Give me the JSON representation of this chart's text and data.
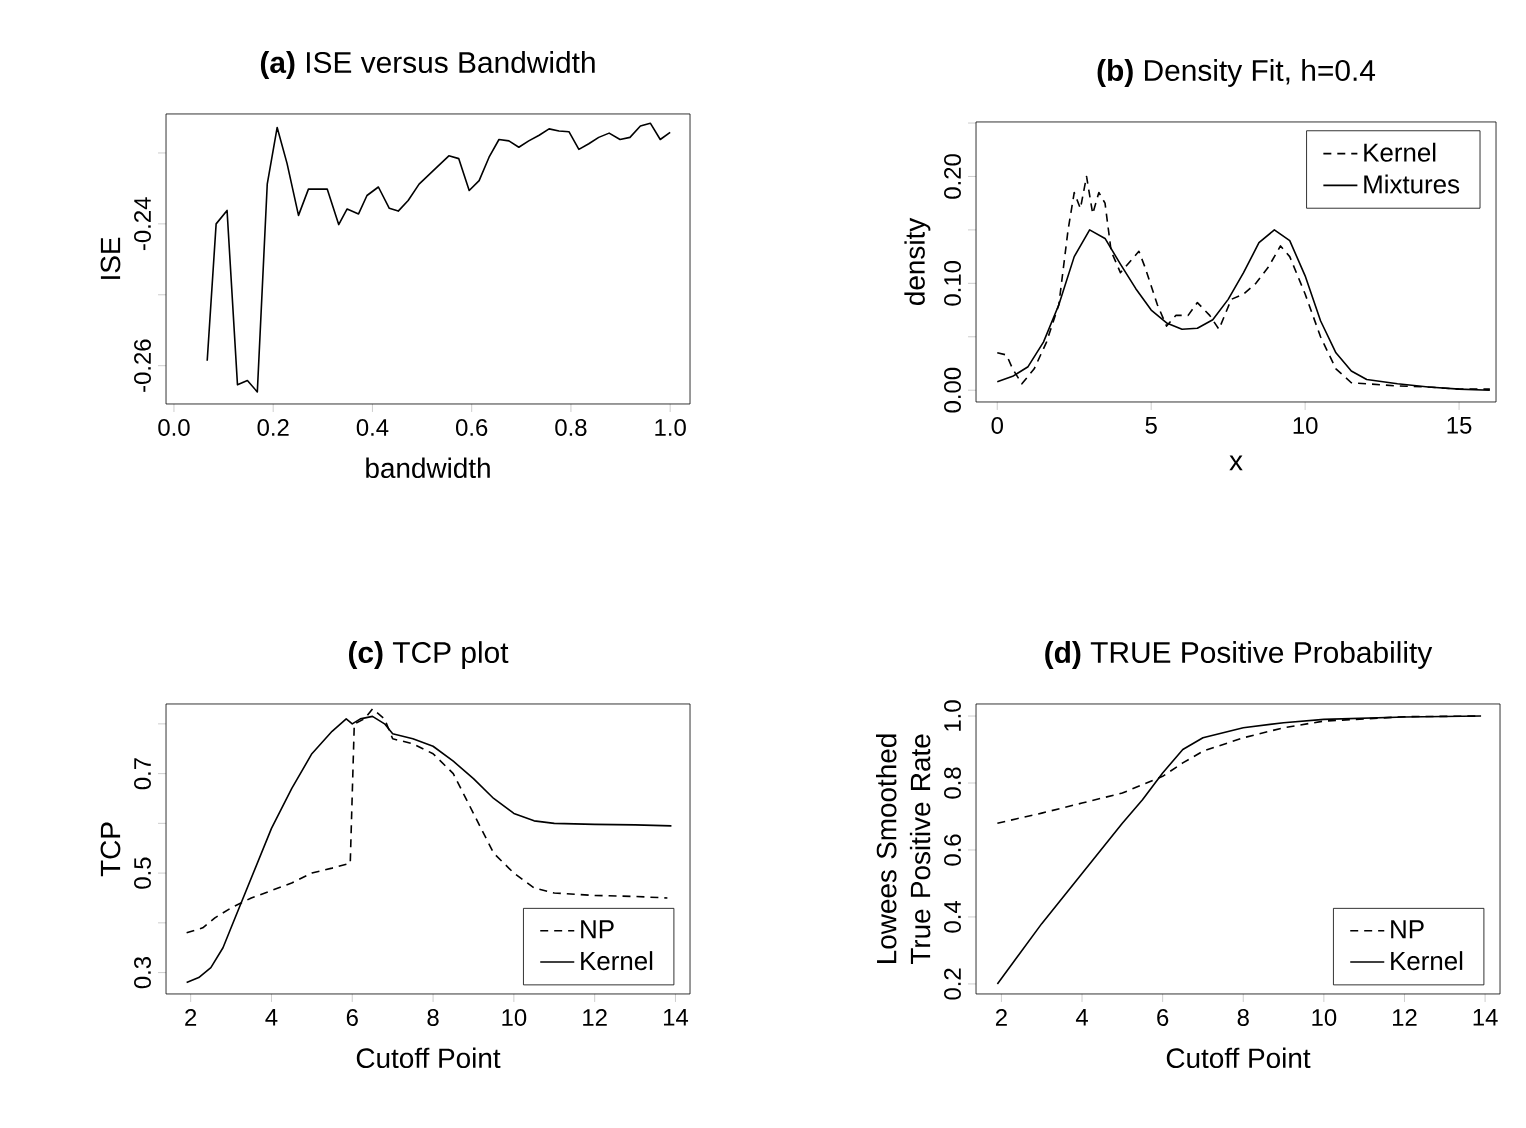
{
  "chart_data": [
    {
      "type": "line",
      "title": "**(a)** ISE versus Bandwidth",
      "xlabel": "bandwidth",
      "ylabel": "ISE",
      "xlim": [
        -0.016,
        1.04
      ],
      "ylim": [
        -0.2654,
        -0.2245
      ],
      "xticks": [
        {
          "value": 0,
          "label": "0.0"
        },
        0.2,
        0.4,
        0.6,
        0.8,
        {
          "value": 1,
          "label": "1.0"
        }
      ],
      "yticks": [
        -0.26,
        {
          "value": -0.25,
          "label": null
        },
        -0.24,
        {
          "value": -0.23,
          "label": null
        }
      ],
      "legend": false,
      "series": [
        {
          "color": "#000000",
          "line_style": "solid",
          "x": [
            0.067,
            0.085,
            0.107,
            0.128,
            0.148,
            0.168,
            0.188,
            0.208,
            0.228,
            0.251,
            0.271,
            0.309,
            0.332,
            0.349,
            0.372,
            0.389,
            0.412,
            0.434,
            0.452,
            0.472,
            0.494,
            0.53,
            0.554,
            0.574,
            0.595,
            0.615,
            0.635,
            0.655,
            0.675,
            0.695,
            0.715,
            0.736,
            0.756,
            0.776,
            0.796,
            0.816,
            0.836,
            0.856,
            0.877,
            0.899,
            0.919,
            0.94,
            0.96,
            0.98,
            1.0
          ],
          "values": [
            -0.2593,
            -0.24,
            -0.2381,
            -0.2627,
            -0.2621,
            -0.2637,
            -0.2344,
            -0.2264,
            -0.2315,
            -0.2388,
            -0.2351,
            -0.2351,
            -0.2401,
            -0.2379,
            -0.2386,
            -0.236,
            -0.2348,
            -0.2378,
            -0.2382,
            -0.2367,
            -0.2344,
            -0.232,
            -0.2304,
            -0.2308,
            -0.2353,
            -0.2339,
            -0.2306,
            -0.2281,
            -0.2283,
            -0.2292,
            -0.2283,
            -0.2275,
            -0.2266,
            -0.2269,
            -0.227,
            -0.2295,
            -0.2287,
            -0.2278,
            -0.2272,
            -0.2281,
            -0.2278,
            -0.2262,
            -0.2258,
            -0.2281,
            -0.2271
          ]
        }
      ]
    },
    {
      "type": "line",
      "title": "**(b)** Density Fit, h=0.4",
      "xlabel": "x",
      "ylabel": "density",
      "xlim": [
        -0.69,
        16.2
      ],
      "ylim": [
        -0.011,
        0.251
      ],
      "xticks": [
        0,
        5,
        10,
        15
      ],
      "yticks": [
        {
          "value": 0,
          "label": "0.00"
        },
        {
          "value": 0.05,
          "label": null
        },
        {
          "value": 0.1,
          "label": "0.10"
        },
        {
          "value": 0.15,
          "label": null
        },
        {
          "value": 0.2,
          "label": "0.20"
        },
        {
          "value": 0.25,
          "label": null
        }
      ],
      "legend": "top right",
      "series": [
        {
          "name": "Kernel",
          "color": "#000000",
          "line_style": "dashed",
          "x": [
            0,
            0.3,
            0.5,
            0.8,
            1.2,
            1.6,
            2,
            2.3,
            2.5,
            2.7,
            2.9,
            3.1,
            3.3,
            3.5,
            3.7,
            4,
            4.3,
            4.6,
            4.8,
            5.2,
            5.5,
            5.8,
            6.2,
            6.5,
            6.9,
            7.2,
            7.6,
            8.0,
            8.4,
            8.8,
            9.2,
            9.5,
            10,
            10.5,
            11,
            11.5,
            12,
            13,
            14,
            15,
            16
          ],
          "values": [
            0.035,
            0.033,
            0.02,
            0.006,
            0.02,
            0.045,
            0.08,
            0.15,
            0.185,
            0.17,
            0.2,
            0.165,
            0.185,
            0.175,
            0.13,
            0.11,
            0.12,
            0.13,
            0.115,
            0.08,
            0.06,
            0.07,
            0.07,
            0.082,
            0.07,
            0.057,
            0.085,
            0.09,
            0.1,
            0.115,
            0.135,
            0.125,
            0.09,
            0.05,
            0.02,
            0.007,
            0.006,
            0.004,
            0.003,
            0.001,
            0.001
          ]
        },
        {
          "name": "Mixtures",
          "color": "#000000",
          "line_style": "solid",
          "x": [
            0,
            0.5,
            1,
            1.5,
            2,
            2.5,
            3,
            3.5,
            4,
            4.5,
            5,
            5.5,
            6,
            6.5,
            7,
            7.5,
            8,
            8.5,
            9,
            9.5,
            10,
            10.5,
            11,
            11.5,
            12,
            13,
            14,
            15,
            16
          ],
          "values": [
            0.008,
            0.013,
            0.022,
            0.045,
            0.08,
            0.125,
            0.15,
            0.142,
            0.118,
            0.095,
            0.075,
            0.063,
            0.057,
            0.058,
            0.066,
            0.085,
            0.11,
            0.138,
            0.15,
            0.14,
            0.107,
            0.065,
            0.035,
            0.018,
            0.01,
            0.006,
            0.003,
            0.001,
            0.0
          ]
        }
      ]
    },
    {
      "type": "line",
      "title": "**(c)** TCP plot",
      "xlabel": "Cutoff Point",
      "ylabel": "TCP",
      "xlim": [
        1.39,
        14.36
      ],
      "ylim": [
        0.257,
        0.84
      ],
      "xticks": [
        2,
        4,
        6,
        8,
        10,
        12,
        14
      ],
      "yticks": [
        0.3,
        {
          "value": 0.4,
          "label": null
        },
        0.5,
        {
          "value": 0.6,
          "label": null
        },
        0.7,
        {
          "value": 0.8,
          "label": null
        }
      ],
      "legend": "bottom right",
      "series": [
        {
          "name": "NP",
          "color": "#000000",
          "line_style": "dashed",
          "x": [
            1.9,
            2.3,
            2.6,
            3,
            3.5,
            4,
            4.5,
            5,
            5.5,
            5.95,
            6.05,
            6.3,
            6.5,
            6.8,
            7,
            7.5,
            8,
            8.5,
            9,
            9.5,
            10,
            10.5,
            11,
            12,
            13,
            13.8
          ],
          "values": [
            0.38,
            0.39,
            0.41,
            0.43,
            0.45,
            0.465,
            0.48,
            0.5,
            0.51,
            0.52,
            0.8,
            0.81,
            0.83,
            0.81,
            0.77,
            0.76,
            0.74,
            0.7,
            0.62,
            0.54,
            0.5,
            0.47,
            0.46,
            0.455,
            0.453,
            0.45
          ]
        },
        {
          "name": "Kernel",
          "color": "#000000",
          "line_style": "solid",
          "x": [
            1.9,
            2.2,
            2.5,
            2.8,
            3,
            3.5,
            4,
            4.5,
            5,
            5.5,
            5.85,
            6,
            6.2,
            6.5,
            6.8,
            7,
            7.5,
            8,
            8.5,
            9,
            9.5,
            10,
            10.5,
            11,
            12,
            13,
            13.9
          ],
          "values": [
            0.28,
            0.29,
            0.31,
            0.35,
            0.39,
            0.49,
            0.59,
            0.67,
            0.74,
            0.785,
            0.81,
            0.8,
            0.81,
            0.815,
            0.8,
            0.78,
            0.77,
            0.755,
            0.725,
            0.69,
            0.65,
            0.62,
            0.605,
            0.6,
            0.598,
            0.597,
            0.595
          ]
        }
      ]
    },
    {
      "type": "line",
      "title": "**(d)** TRUE Positive Probability",
      "xlabel": "Cutoff Point",
      "ylabel": "Lowees Smoothed True Positive Rate",
      "xlim": [
        1.37,
        14.37
      ],
      "ylim": [
        0.17,
        1.036
      ],
      "xticks": [
        2,
        4,
        6,
        8,
        10,
        12,
        14
      ],
      "yticks": [
        0.2,
        0.4,
        0.6,
        0.8,
        {
          "value": 1,
          "label": "1.0"
        }
      ],
      "legend": "bottom right",
      "series": [
        {
          "name": "NP",
          "color": "#000000",
          "line_style": "dashed",
          "x": [
            1.9,
            3,
            4,
            5,
            5.5,
            6,
            6.5,
            7,
            8,
            9,
            10,
            12,
            13.9
          ],
          "values": [
            0.68,
            0.71,
            0.74,
            0.77,
            0.795,
            0.82,
            0.86,
            0.895,
            0.935,
            0.965,
            0.985,
            0.998,
            1.0
          ]
        },
        {
          "name": "Kernel",
          "color": "#000000",
          "line_style": "solid",
          "x": [
            1.9,
            3,
            4,
            5,
            5.5,
            6,
            6.5,
            7,
            8,
            9,
            10,
            12,
            13.9
          ],
          "values": [
            0.2,
            0.38,
            0.53,
            0.68,
            0.75,
            0.83,
            0.9,
            0.935,
            0.965,
            0.98,
            0.99,
            0.997,
            1.0
          ]
        }
      ]
    }
  ]
}
